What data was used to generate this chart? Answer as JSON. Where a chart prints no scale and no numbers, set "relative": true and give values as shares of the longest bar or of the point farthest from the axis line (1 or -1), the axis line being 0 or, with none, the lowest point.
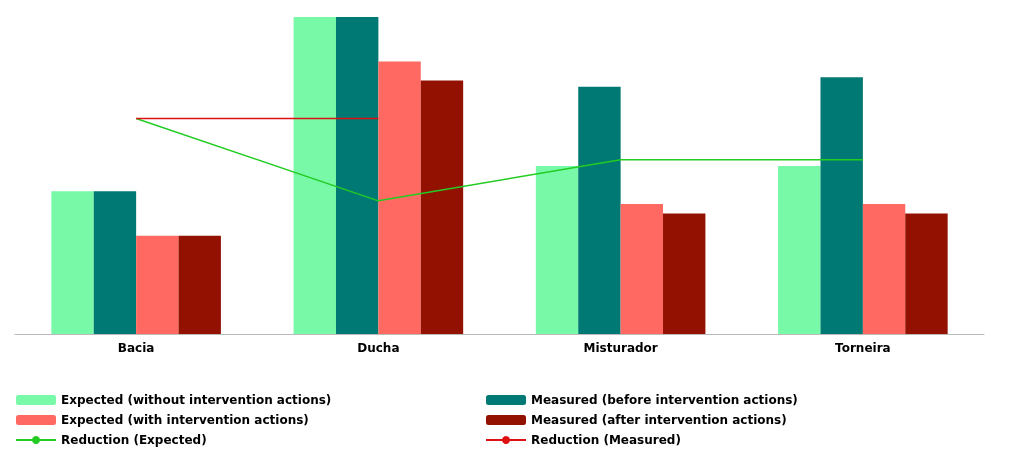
{
  "chart_data": {
    "type": "bar",
    "relative": true,
    "categories": [
      "Bacia",
      "Ducha",
      "Misturador",
      "Torneira"
    ],
    "series": [
      {
        "name": "Expected (without intervention actions)",
        "color": "#77f9a7",
        "values": [
          0.45,
          1,
          0.53,
          0.53
        ]
      },
      {
        "name": "Measured (before intervention actions)",
        "color": "#007873",
        "values": [
          0.45,
          1,
          0.78,
          0.81
        ]
      },
      {
        "name": "Expected (with intervention actions)",
        "color": "#ff6962",
        "values": [
          0.31,
          0.86,
          0.41,
          0.41
        ]
      },
      {
        "name": "Measured (after intervention actions)",
        "color": "#931100",
        "values": [
          0.31,
          0.8,
          0.38,
          0.38
        ]
      },
      {
        "name": "Reduction (Expected)",
        "type": "line",
        "color": "#22cc22",
        "values": [
          0.68,
          0.42,
          0.55,
          0.55
        ]
      },
      {
        "name": "Reduction (Measured)",
        "type": "line",
        "color": "#dd1111",
        "values": [
          0.68,
          0.68,
          null,
          null
        ]
      }
    ],
    "legend": "bottom",
    "marker": "none"
  }
}
